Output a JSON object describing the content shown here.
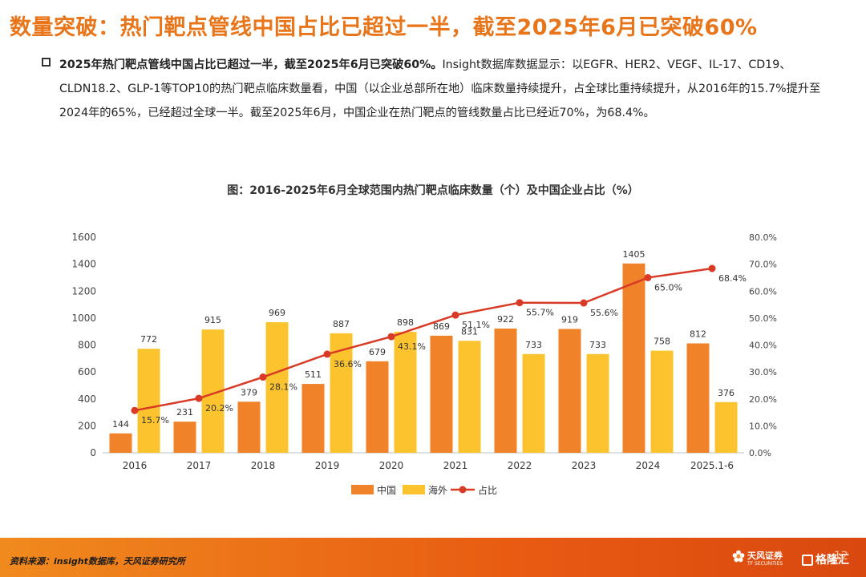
{
  "header": {
    "title": "数量突破：热门靶点管线中国占比已超过一半，截至2025年6月已突破60%"
  },
  "body": {
    "bold_lead": "2025年热门靶点管线中国占比已超过一半，截至2025年6月已突破60%。",
    "text": "Insight数据库数据显示：以EGFR、HER2、VEGF、IL-17、CD19、CLDN18.2、GLP-1等TOP10的热门靶点临床数量看，中国（以企业总部所在地）临床数量持续提升，占全球比重持续提升，从2016年的15.7%提升至2024年的65%，已经超过全球一半。截至2025年6月，中国企业在热门靶点的管线数量占比已经近70%，为68.4%。"
  },
  "chart_data": {
    "type": "bar",
    "title": "图：2016-2025年6月全球范围内热门靶点临床数量（个）及中国企业占比（%）",
    "categories": [
      "2016",
      "2017",
      "2018",
      "2019",
      "2020",
      "2021",
      "2022",
      "2023",
      "2024",
      "2025.1-6"
    ],
    "series": [
      {
        "name": "中国",
        "type": "bar",
        "color": "#F0822A",
        "values": [
          144,
          231,
          379,
          511,
          679,
          869,
          922,
          919,
          1405,
          812
        ]
      },
      {
        "name": "海外",
        "type": "bar",
        "color": "#FBC42F",
        "values": [
          772,
          915,
          969,
          887,
          898,
          831,
          733,
          733,
          758,
          376
        ]
      },
      {
        "name": "占比",
        "type": "line",
        "color": "#D93A26",
        "axis": "right",
        "values": [
          15.7,
          20.2,
          28.1,
          36.6,
          43.1,
          51.1,
          55.7,
          55.6,
          65.0,
          68.4
        ]
      }
    ],
    "left_axis": {
      "min": 0,
      "max": 1600,
      "step": 200,
      "ticks": [
        "0",
        "200",
        "400",
        "600",
        "800",
        "1000",
        "1200",
        "1400",
        "1600"
      ]
    },
    "right_axis": {
      "min": 0,
      "max": 80,
      "step": 10,
      "ticks": [
        "0.0%",
        "10.0%",
        "20.0%",
        "30.0%",
        "40.0%",
        "50.0%",
        "60.0%",
        "70.0%",
        "80.0%"
      ]
    },
    "line_labels": [
      "15.7%",
      "20.2%",
      "28.1%",
      "36.6%",
      "43.1%",
      "51.1%",
      "55.7%",
      "55.6%",
      "65.0%",
      "68.4%"
    ],
    "legend_position": "bottom",
    "grid": false
  },
  "footer": {
    "source": "资料来源：insight数据库，天风证券研究所",
    "brand_cn": "天风证券",
    "brand_en": "TF SECURITIES",
    "watermark": "格隆汇",
    "page_number": "12"
  }
}
